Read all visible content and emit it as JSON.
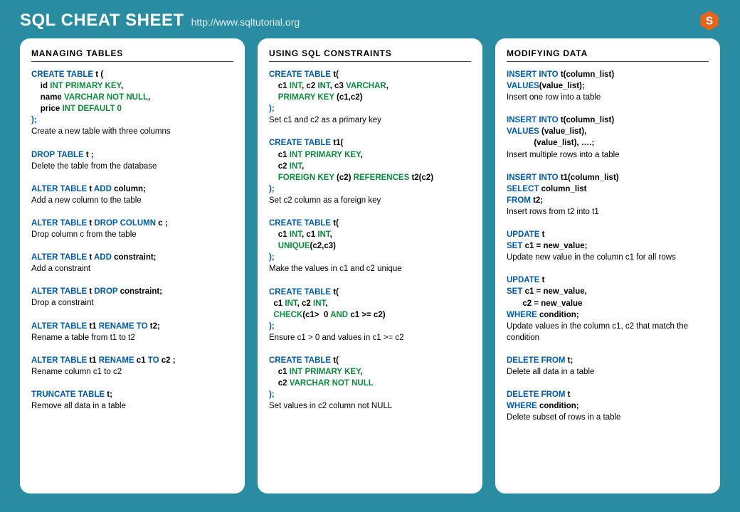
{
  "header": {
    "title": "SQL CHEAT SHEET",
    "url": "http://www.sqltutorial.org"
  },
  "colors": {
    "background": "#2a8ca0",
    "card_bg": "#ffffff",
    "keyword": "#005aa8",
    "type": "#0a8a3a",
    "text": "#000000",
    "logo_orange": "#e8641b"
  },
  "columns": [
    {
      "title": "MANAGING TABLES",
      "items": [
        {
          "code": [
            {
              "t": "CREATE TABLE ",
              "c": "kw"
            },
            {
              "t": "t (",
              "c": "nm"
            },
            {
              "t": "\n    "
            },
            {
              "t": "id ",
              "c": "nm"
            },
            {
              "t": "INT PRIMARY KEY",
              "c": "ty"
            },
            {
              "t": ",",
              "c": "nm"
            },
            {
              "t": "\n    "
            },
            {
              "t": "name ",
              "c": "nm"
            },
            {
              "t": "VARCHAR NOT NULL",
              "c": "ty"
            },
            {
              "t": ",",
              "c": "nm"
            },
            {
              "t": "\n    "
            },
            {
              "t": "price ",
              "c": "nm"
            },
            {
              "t": "INT DEFAULT 0",
              "c": "ty"
            },
            {
              "t": "\n"
            },
            {
              "t": ");",
              "c": "p"
            }
          ],
          "desc": "Create a new table with three columns"
        },
        {
          "code": [
            {
              "t": "DROP TABLE ",
              "c": "kw"
            },
            {
              "t": "t ;",
              "c": "nm"
            }
          ],
          "desc": "Delete the table from the database"
        },
        {
          "code": [
            {
              "t": "ALTER TABLE ",
              "c": "kw"
            },
            {
              "t": "t ",
              "c": "nm"
            },
            {
              "t": "ADD ",
              "c": "kw"
            },
            {
              "t": "column;",
              "c": "nm"
            }
          ],
          "desc": "Add a new column to the table"
        },
        {
          "code": [
            {
              "t": "ALTER TABLE ",
              "c": "kw"
            },
            {
              "t": "t ",
              "c": "nm"
            },
            {
              "t": "DROP COLUMN ",
              "c": "kw"
            },
            {
              "t": "c ;",
              "c": "nm"
            }
          ],
          "desc": "Drop column c from the table"
        },
        {
          "code": [
            {
              "t": "ALTER TABLE ",
              "c": "kw"
            },
            {
              "t": "t ",
              "c": "nm"
            },
            {
              "t": "ADD ",
              "c": "kw"
            },
            {
              "t": "constraint;",
              "c": "nm"
            }
          ],
          "desc": "Add a constraint"
        },
        {
          "code": [
            {
              "t": "ALTER TABLE ",
              "c": "kw"
            },
            {
              "t": "t ",
              "c": "nm"
            },
            {
              "t": "DROP ",
              "c": "kw"
            },
            {
              "t": "constraint;",
              "c": "nm"
            }
          ],
          "desc": "Drop a constraint"
        },
        {
          "code": [
            {
              "t": "ALTER TABLE ",
              "c": "kw"
            },
            {
              "t": "t1 ",
              "c": "nm"
            },
            {
              "t": "RENAME TO ",
              "c": "kw"
            },
            {
              "t": "t2;",
              "c": "nm"
            }
          ],
          "desc": "Rename a table from t1 to t2"
        },
        {
          "code": [
            {
              "t": "ALTER TABLE ",
              "c": "kw"
            },
            {
              "t": "t1 ",
              "c": "nm"
            },
            {
              "t": "RENAME ",
              "c": "kw"
            },
            {
              "t": "c1 ",
              "c": "nm"
            },
            {
              "t": "TO ",
              "c": "kw"
            },
            {
              "t": "c2 ;",
              "c": "nm"
            }
          ],
          "desc": "Rename column c1 to c2"
        },
        {
          "code": [
            {
              "t": "TRUNCATE TABLE ",
              "c": "kw"
            },
            {
              "t": "t;",
              "c": "nm"
            }
          ],
          "desc": "Remove all data in a table"
        }
      ]
    },
    {
      "title": "USING SQL CONSTRAINTS",
      "items": [
        {
          "code": [
            {
              "t": "CREATE TABLE ",
              "c": "kw"
            },
            {
              "t": "t(",
              "c": "nm"
            },
            {
              "t": "\n    "
            },
            {
              "t": "c1 ",
              "c": "nm"
            },
            {
              "t": "INT",
              "c": "ty"
            },
            {
              "t": ", c2 ",
              "c": "nm"
            },
            {
              "t": "INT",
              "c": "ty"
            },
            {
              "t": ", c3 ",
              "c": "nm"
            },
            {
              "t": "VARCHAR",
              "c": "ty"
            },
            {
              "t": ",",
              "c": "nm"
            },
            {
              "t": "\n    "
            },
            {
              "t": "PRIMARY KEY ",
              "c": "ty"
            },
            {
              "t": "(",
              "c": "nm"
            },
            {
              "t": "c1,c2",
              "c": "nm"
            },
            {
              "t": ")",
              "c": "nm"
            },
            {
              "t": "\n"
            },
            {
              "t": ");",
              "c": "p"
            }
          ],
          "desc": "Set c1 and c2 as a primary key"
        },
        {
          "code": [
            {
              "t": "CREATE TABLE ",
              "c": "kw"
            },
            {
              "t": "t1(",
              "c": "nm"
            },
            {
              "t": "\n    "
            },
            {
              "t": "c1 ",
              "c": "nm"
            },
            {
              "t": "INT PRIMARY KEY",
              "c": "ty"
            },
            {
              "t": ",",
              "c": "nm"
            },
            {
              "t": "\n    "
            },
            {
              "t": "c2 ",
              "c": "nm"
            },
            {
              "t": "INT",
              "c": "ty"
            },
            {
              "t": ",",
              "c": "nm"
            },
            {
              "t": "\n    "
            },
            {
              "t": "FOREIGN KEY ",
              "c": "ty"
            },
            {
              "t": "(c2) ",
              "c": "nm"
            },
            {
              "t": "REFERENCES ",
              "c": "ty"
            },
            {
              "t": "t2(c2)",
              "c": "nm"
            },
            {
              "t": "\n"
            },
            {
              "t": ");",
              "c": "p"
            }
          ],
          "desc": "Set c2 column as a foreign key"
        },
        {
          "code": [
            {
              "t": "CREATE TABLE ",
              "c": "kw"
            },
            {
              "t": "t(",
              "c": "nm"
            },
            {
              "t": "\n    "
            },
            {
              "t": "c1 ",
              "c": "nm"
            },
            {
              "t": "INT",
              "c": "ty"
            },
            {
              "t": ", c1 ",
              "c": "nm"
            },
            {
              "t": "INT",
              "c": "ty"
            },
            {
              "t": ",",
              "c": "nm"
            },
            {
              "t": "\n    "
            },
            {
              "t": "UNIQUE",
              "c": "ty"
            },
            {
              "t": "(",
              "c": "nm"
            },
            {
              "t": "c2,c3",
              "c": "nm"
            },
            {
              "t": ")",
              "c": "nm"
            },
            {
              "t": "\n"
            },
            {
              "t": ");",
              "c": "p"
            }
          ],
          "desc": "Make the values in c1 and c2 unique"
        },
        {
          "code": [
            {
              "t": "CREATE TABLE ",
              "c": "kw"
            },
            {
              "t": "t(",
              "c": "nm"
            },
            {
              "t": "\n  "
            },
            {
              "t": "c1 ",
              "c": "nm"
            },
            {
              "t": "INT",
              "c": "ty"
            },
            {
              "t": ", c2 ",
              "c": "nm"
            },
            {
              "t": "INT",
              "c": "ty"
            },
            {
              "t": ",",
              "c": "nm"
            },
            {
              "t": "\n  "
            },
            {
              "t": "CHECK",
              "c": "ty"
            },
            {
              "t": "(c1>  0 ",
              "c": "nm"
            },
            {
              "t": "AND ",
              "c": "ty"
            },
            {
              "t": "c1 >= c2)",
              "c": "nm"
            },
            {
              "t": "\n"
            },
            {
              "t": ");",
              "c": "p"
            }
          ],
          "desc": "Ensure c1 > 0 and values in c1 >= c2"
        },
        {
          "code": [
            {
              "t": "CREATE TABLE ",
              "c": "kw"
            },
            {
              "t": "t(",
              "c": "nm"
            },
            {
              "t": "\n    "
            },
            {
              "t": "c1 ",
              "c": "nm"
            },
            {
              "t": "INT PRIMARY KEY",
              "c": "ty"
            },
            {
              "t": ",",
              "c": "nm"
            },
            {
              "t": "\n    "
            },
            {
              "t": "c2 ",
              "c": "nm"
            },
            {
              "t": "VARCHAR NOT NULL",
              "c": "ty"
            },
            {
              "t": "\n"
            },
            {
              "t": ");",
              "c": "p"
            }
          ],
          "desc": "Set values in c2 column not NULL"
        }
      ]
    },
    {
      "title": "MODIFYING DATA",
      "items": [
        {
          "code": [
            {
              "t": "INSERT INTO ",
              "c": "kw"
            },
            {
              "t": "t(column_list)",
              "c": "nm"
            },
            {
              "t": "\n"
            },
            {
              "t": "VALUES",
              "c": "kw"
            },
            {
              "t": "(value_list);",
              "c": "nm"
            }
          ],
          "desc": "Insert one row into a table"
        },
        {
          "code": [
            {
              "t": "INSERT INTO ",
              "c": "kw"
            },
            {
              "t": "t(column_list)",
              "c": "nm"
            },
            {
              "t": "\n"
            },
            {
              "t": "VALUES ",
              "c": "kw"
            },
            {
              "t": "(value_list),",
              "c": "nm"
            },
            {
              "t": "\n            "
            },
            {
              "t": "(value_list), ….;",
              "c": "nm"
            }
          ],
          "desc": "Insert multiple rows into a table"
        },
        {
          "code": [
            {
              "t": "INSERT INTO ",
              "c": "kw"
            },
            {
              "t": "t1(column_list)",
              "c": "nm"
            },
            {
              "t": "\n"
            },
            {
              "t": "SELECT ",
              "c": "kw"
            },
            {
              "t": "column_list",
              "c": "nm"
            },
            {
              "t": "\n"
            },
            {
              "t": "FROM ",
              "c": "kw"
            },
            {
              "t": "t2;",
              "c": "nm"
            }
          ],
          "desc": "Insert rows from t2 into t1"
        },
        {
          "code": [
            {
              "t": "UPDATE ",
              "c": "kw"
            },
            {
              "t": "t",
              "c": "nm"
            },
            {
              "t": "\n"
            },
            {
              "t": "SET ",
              "c": "kw"
            },
            {
              "t": "c1 = new_value;",
              "c": "nm"
            }
          ],
          "desc": "Update new value in the column c1 for all rows"
        },
        {
          "code": [
            {
              "t": "UPDATE ",
              "c": "kw"
            },
            {
              "t": "t",
              "c": "nm"
            },
            {
              "t": "\n"
            },
            {
              "t": "SET ",
              "c": "kw"
            },
            {
              "t": "c1 = new_value,",
              "c": "nm"
            },
            {
              "t": "\n       "
            },
            {
              "t": "c2 = new_value",
              "c": "nm"
            },
            {
              "t": "\n"
            },
            {
              "t": "WHERE ",
              "c": "kw"
            },
            {
              "t": "condition;",
              "c": "nm"
            }
          ],
          "desc": "Update values in the column c1, c2 that match the condition"
        },
        {
          "code": [
            {
              "t": "DELETE FROM ",
              "c": "kw"
            },
            {
              "t": "t;",
              "c": "nm"
            }
          ],
          "desc": "Delete all data in a table"
        },
        {
          "code": [
            {
              "t": "DELETE FROM ",
              "c": "kw"
            },
            {
              "t": "t",
              "c": "nm"
            },
            {
              "t": "\n"
            },
            {
              "t": "WHERE ",
              "c": "kw"
            },
            {
              "t": "condition;",
              "c": "nm"
            }
          ],
          "desc": "Delete subset of rows in a table"
        }
      ]
    }
  ]
}
